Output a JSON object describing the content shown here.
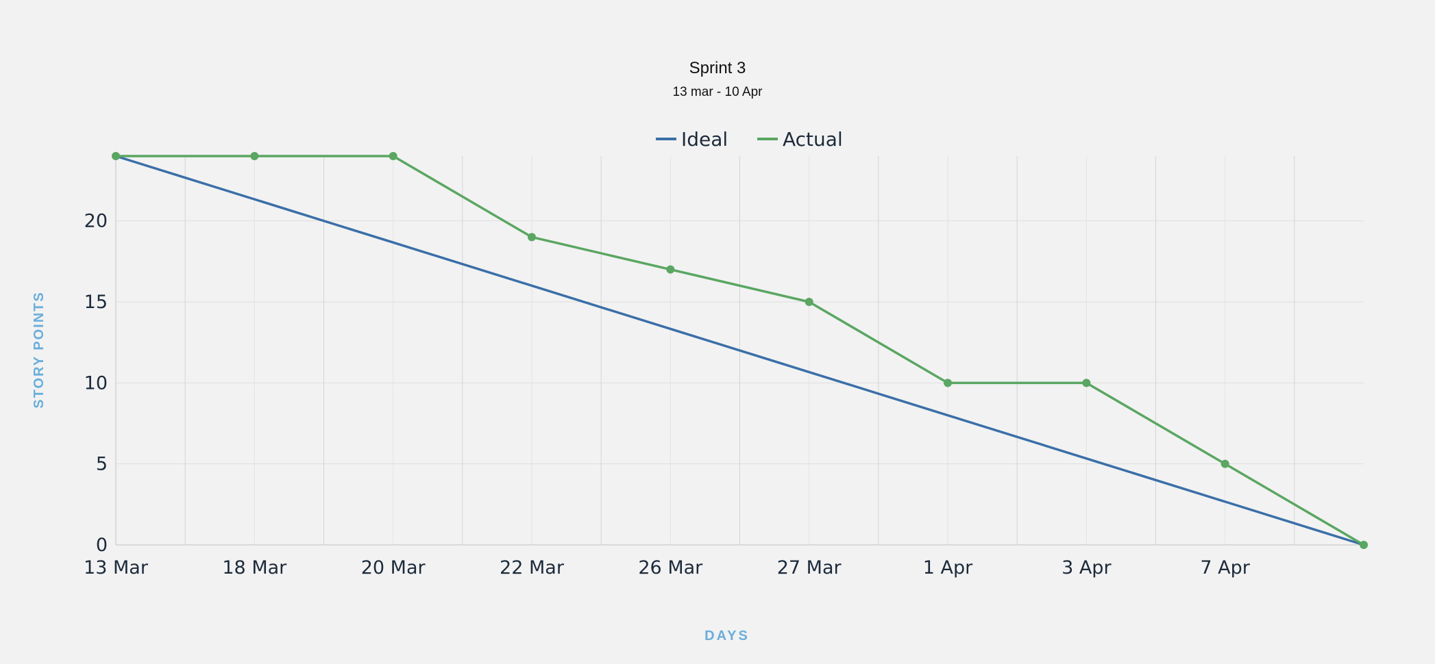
{
  "chart_data": {
    "type": "line",
    "title": "Sprint 3",
    "subtitle": "13 mar - 10 Apr",
    "xlabel": "DAYS",
    "ylabel": "STORY POINTS",
    "categories": [
      "13 Mar",
      "18 Mar",
      "20 Mar",
      "22 Mar",
      "26 Mar",
      "27 Mar",
      "1 Apr",
      "3 Apr",
      "7 Apr",
      ""
    ],
    "ylim": [
      0,
      24
    ],
    "yticks": [
      0,
      5,
      10,
      15,
      20
    ],
    "grid": true,
    "legend_position": "top-center",
    "series": [
      {
        "name": "Ideal",
        "color": "#3a6fa8",
        "values": [
          24,
          21.333,
          18.667,
          16,
          13.333,
          10.667,
          8,
          5.333,
          2.667,
          0
        ],
        "markers": false
      },
      {
        "name": "Actual",
        "color": "#5aa662",
        "values": [
          24,
          24,
          24,
          19,
          17,
          15,
          10,
          10,
          5,
          0
        ],
        "markers": true
      }
    ],
    "colors": {
      "background": "#f2f2f2",
      "axis_label": "#6aaedc",
      "tick_label": "#1c2a3a",
      "grid": "#dcdcdc"
    }
  }
}
